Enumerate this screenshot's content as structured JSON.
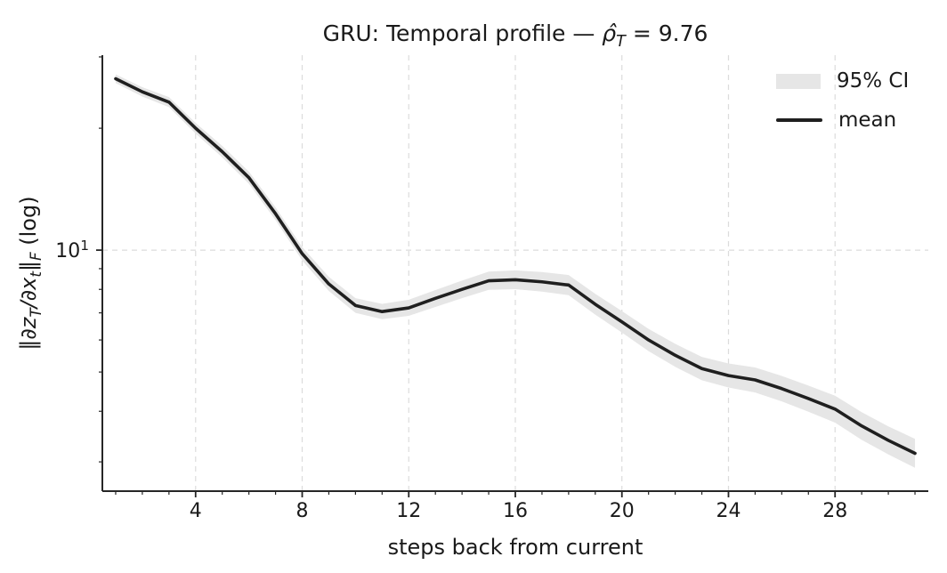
{
  "figure_title": "GRU: Temporal profile — ρ̂_T = 9.76",
  "title_parts": [
    {
      "t": "GRU: Temporal profile — "
    },
    {
      "t": "ρ̂",
      "i": 1
    },
    {
      "t": "T",
      "i": 1,
      "sub": 1
    },
    {
      "t": " = 9.76"
    }
  ],
  "ylabel_parts": [
    {
      "t": "‖"
    },
    {
      "t": "∂z",
      "i": 1
    },
    {
      "t": "T",
      "i": 1,
      "sub": 1
    },
    {
      "t": "/",
      "i": 1
    },
    {
      "t": "∂x",
      "i": 1
    },
    {
      "t": "t",
      "i": 1,
      "sub": 1
    },
    {
      "t": "‖"
    },
    {
      "t": "F",
      "i": 1,
      "sub": 1
    },
    {
      "t": " (log)"
    }
  ],
  "chart_data": {
    "type": "line",
    "title": "GRU: Temporal profile — ρ̂_T = 9.76",
    "xlabel": "steps back from current",
    "ylabel": "‖∂z_T/∂x_t‖_F (log)",
    "yscale": "log",
    "grid": "major-only, dashed, light gray, below data",
    "spines": "left and bottom only",
    "x": [
      1,
      2,
      3,
      4,
      5,
      6,
      7,
      8,
      9,
      10,
      11,
      12,
      13,
      14,
      15,
      16,
      17,
      18,
      19,
      20,
      21,
      22,
      23,
      24,
      25,
      26,
      27,
      28,
      29,
      30,
      31
    ],
    "series": [
      {
        "name": "mean",
        "values": [
          26.5,
          24.6,
          23.2,
          20.0,
          17.5,
          15.1,
          12.3,
          9.8,
          8.25,
          7.3,
          7.05,
          7.2,
          7.6,
          8.0,
          8.4,
          8.45,
          8.35,
          8.2,
          7.35,
          6.65,
          6.0,
          5.5,
          5.1,
          4.9,
          4.78,
          4.55,
          4.3,
          4.05,
          3.68,
          3.39,
          3.15
        ]
      },
      {
        "name": "95% CI lower",
        "values": [
          25.85,
          23.95,
          22.55,
          19.4,
          16.94,
          14.59,
          11.86,
          9.43,
          7.93,
          7.0,
          6.75,
          6.88,
          7.24,
          7.61,
          7.98,
          8.01,
          7.9,
          7.74,
          6.93,
          6.26,
          5.63,
          5.15,
          4.77,
          4.58,
          4.45,
          4.23,
          3.99,
          3.75,
          3.4,
          3.13,
          2.9
        ]
      },
      {
        "name": "95% CI upper",
        "values": [
          27.16,
          25.26,
          23.87,
          20.62,
          18.08,
          15.63,
          12.76,
          10.18,
          8.59,
          7.61,
          7.37,
          7.54,
          7.97,
          8.41,
          8.85,
          8.91,
          8.83,
          8.68,
          7.8,
          7.07,
          6.39,
          5.87,
          5.45,
          5.25,
          5.13,
          4.89,
          4.63,
          4.37,
          3.98,
          3.67,
          3.42
        ]
      }
    ],
    "xlim": [
      0.5,
      31.5
    ],
    "ylim": [
      2.54,
      30.3
    ],
    "x_major_ticks": [
      4,
      8,
      12,
      16,
      20,
      24,
      28
    ],
    "x_major_tick_labels": [
      "4",
      "8",
      "12",
      "16",
      "20",
      "24",
      "28"
    ],
    "x_minor_ticks": [
      1,
      2,
      3,
      5,
      6,
      7,
      9,
      10,
      11,
      13,
      14,
      15,
      17,
      18,
      19,
      21,
      22,
      23,
      25,
      26,
      27,
      29,
      30,
      31
    ],
    "y_major_ticks": [
      10
    ],
    "y_major_tick_labels": [
      {
        "base": "10",
        "exp": "1",
        "value": 10
      }
    ],
    "y_minor_ticks": [
      3,
      4,
      5,
      6,
      7,
      8,
      9,
      20,
      30
    ],
    "legend": {
      "position": "upper right",
      "frame": false,
      "entries": [
        {
          "swatch": "patch",
          "label": "95% CI"
        },
        {
          "swatch": "line",
          "label": "mean"
        }
      ]
    },
    "colors": {
      "mean_line": "#1f1f1f",
      "ci_band": "#e6e6e6",
      "grid": "#dcdcdc",
      "spine": "#262626",
      "text": "#1a1a1a",
      "background": "#ffffff"
    }
  }
}
